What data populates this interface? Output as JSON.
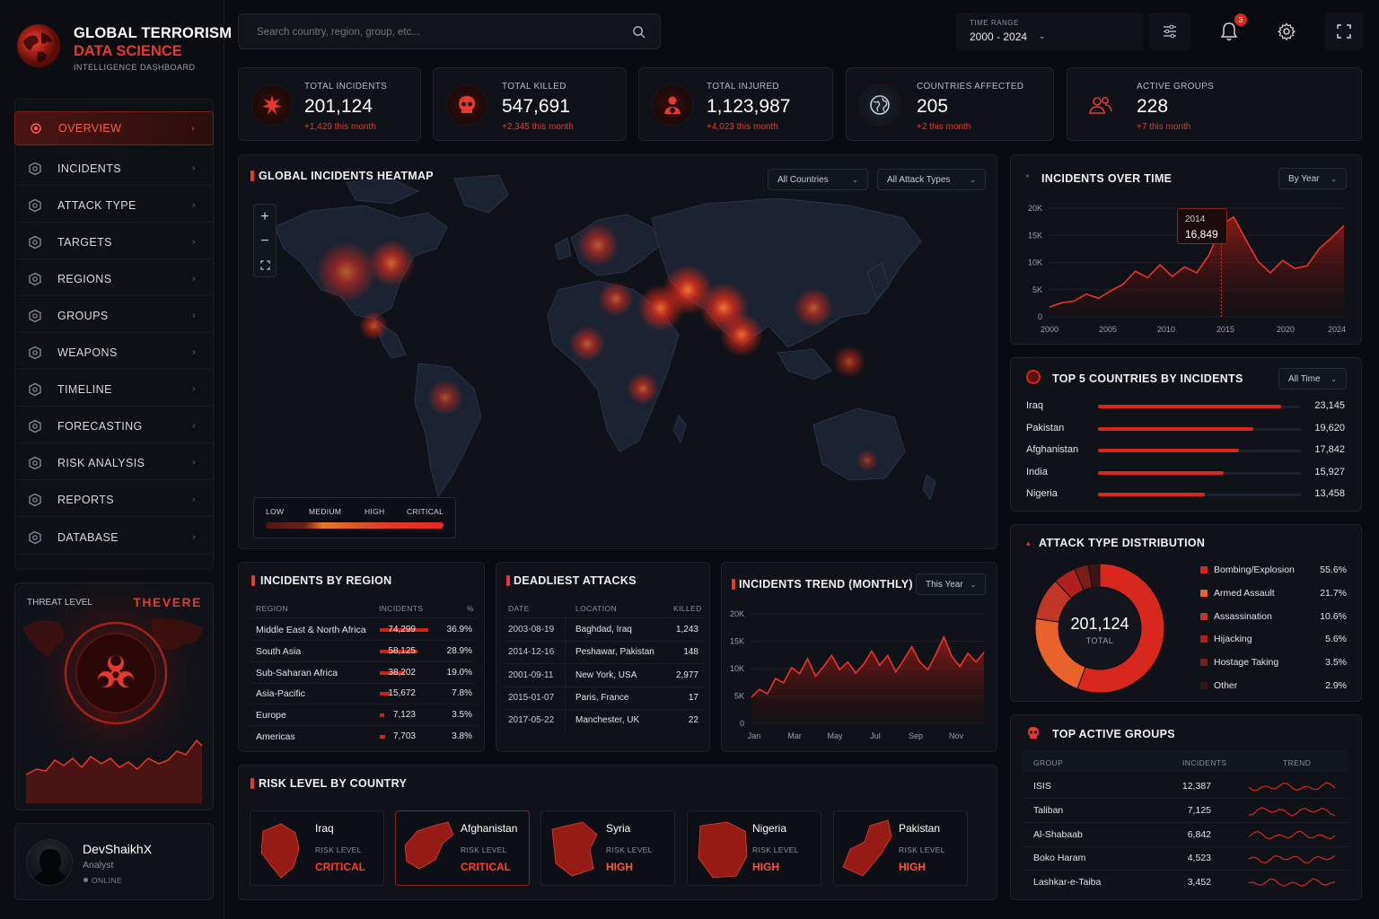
{
  "brand": {
    "title": "GLOBAL TERRORISM",
    "subtitle": "DATA SCIENCE",
    "tagline": "INTELLIGENCE DASHBOARD"
  },
  "nav": [
    {
      "label": "OVERVIEW",
      "icon": "overview-icon",
      "active": true
    },
    {
      "label": "INCIDENTS",
      "icon": "incidents-icon"
    },
    {
      "label": "ATTACK TYPE",
      "icon": "attack-type-icon"
    },
    {
      "label": "TARGETS",
      "icon": "target-icon"
    },
    {
      "label": "REGIONS",
      "icon": "globe-icon"
    },
    {
      "label": "GROUPS",
      "icon": "groups-icon"
    },
    {
      "label": "WEAPONS",
      "icon": "weapons-icon"
    },
    {
      "label": "TIMELINE",
      "icon": "calendar-icon"
    },
    {
      "label": "FORECASTING",
      "icon": "forecast-icon"
    },
    {
      "label": "RISK ANALYSIS",
      "icon": "warning-icon"
    },
    {
      "label": "REPORTS",
      "icon": "report-icon"
    },
    {
      "label": "DATABASE",
      "icon": "database-icon"
    }
  ],
  "threat": {
    "label": "THREAT LEVEL",
    "value": "THEVERE"
  },
  "user": {
    "name": "DevShaikhX",
    "role": "Analyst",
    "status": "ONLINE"
  },
  "search": {
    "placeholder": "Search country, region, group, etc..."
  },
  "time_range": {
    "label": "TIME RANGE",
    "value": "2000 - 2024"
  },
  "notifications": {
    "count": "3"
  },
  "stats": [
    {
      "label": "TOTAL INCIDENTS",
      "value": "201,124",
      "delta": "+1,429 this month",
      "icon": "explosion-icon"
    },
    {
      "label": "TOTAL KILLED",
      "value": "547,691",
      "delta": "+2,345 this month",
      "icon": "skull-icon"
    },
    {
      "label": "TOTAL INJURED",
      "value": "1,123,987",
      "delta": "+4,023 this month",
      "icon": "injured-person-icon"
    },
    {
      "label": "COUNTRIES AFFECTED",
      "value": "205",
      "delta": "+2 this month",
      "icon": "globe-icon"
    },
    {
      "label": "ACTIVE GROUPS",
      "value": "228",
      "delta": "+7 this month",
      "icon": "groups-icon"
    }
  ],
  "heatmap": {
    "title": "GLOBAL INCIDENTS HEATMAP",
    "filter_country": "All Countries",
    "filter_attack": "All Attack Types",
    "legend": [
      "LOW",
      "MEDIUM",
      "HIGH",
      "CRITICAL"
    ]
  },
  "over_time": {
    "title": "INCIDENTS OVER TIME",
    "filter": "By Year",
    "tooltip_year": "2014",
    "tooltip_value": "16,849"
  },
  "top_countries": {
    "title": "TOP 5 COUNTRIES BY INCIDENTS",
    "filter": "All Time",
    "max": 23145,
    "rows": [
      {
        "name": "Iraq",
        "value": 23145,
        "display": "23,145"
      },
      {
        "name": "Pakistan",
        "value": 19620,
        "display": "19,620"
      },
      {
        "name": "Afghanistan",
        "value": 17842,
        "display": "17,842"
      },
      {
        "name": "India",
        "value": 15927,
        "display": "15,927"
      },
      {
        "name": "Nigeria",
        "value": 13458,
        "display": "13,458"
      }
    ]
  },
  "attack_dist": {
    "title": "ATTACK TYPE DISTRIBUTION",
    "total": "201,124",
    "total_label": "TOTAL"
  },
  "by_region": {
    "title": "INCIDENTS BY REGION",
    "headers": [
      "REGION",
      "INCIDENTS",
      "%"
    ],
    "max": 74299,
    "rows": [
      {
        "region": "Middle East & North Africa",
        "incidents": 74299,
        "display": "74,299",
        "pct": "36.9%"
      },
      {
        "region": "South Asia",
        "incidents": 58125,
        "display": "58,125",
        "pct": "28.9%"
      },
      {
        "region": "Sub-Saharan Africa",
        "incidents": 38202,
        "display": "38,202",
        "pct": "19.0%"
      },
      {
        "region": "Asia-Pacific",
        "incidents": 15672,
        "display": "15,672",
        "pct": "7.8%"
      },
      {
        "region": "Europe",
        "incidents": 7123,
        "display": "7,123",
        "pct": "3.5%"
      },
      {
        "region": "Americas",
        "incidents": 7703,
        "display": "7,703",
        "pct": "3.8%"
      }
    ]
  },
  "deadliest": {
    "title": "DEADLIEST ATTACKS",
    "headers": [
      "DATE",
      "LOCATION",
      "KILLED"
    ],
    "rows": [
      {
        "date": "2003-08-19",
        "location": "Baghdad, Iraq",
        "killed": "1,243"
      },
      {
        "date": "2014-12-16",
        "location": "Peshawar, Pakistan",
        "killed": "148"
      },
      {
        "date": "2001-09-11",
        "location": "New York, USA",
        "killed": "2,977"
      },
      {
        "date": "2015-01-07",
        "location": "Paris, France",
        "killed": "17"
      },
      {
        "date": "2017-05-22",
        "location": "Manchester, UK",
        "killed": "22"
      }
    ]
  },
  "trend": {
    "title": "INCIDENTS TREND (MONTHLY)",
    "filter": "This Year"
  },
  "risk": {
    "title": "RISK LEVEL BY COUNTRY",
    "label": "RISK LEVEL",
    "cards": [
      {
        "country": "Iraq",
        "level": "CRITICAL",
        "color": "#ff3b2e"
      },
      {
        "country": "Afghanistan",
        "level": "CRITICAL",
        "color": "#ff3b2e"
      },
      {
        "country": "Syria",
        "level": "HIGH",
        "color": "#ff5533"
      },
      {
        "country": "Nigeria",
        "level": "HIGH",
        "color": "#ff5533"
      },
      {
        "country": "Pakistan",
        "level": "HIGH",
        "color": "#ff5533"
      }
    ]
  },
  "groups": {
    "title": "TOP ACTIVE GROUPS",
    "headers": [
      "GROUP",
      "INCIDENTS",
      "TREND"
    ],
    "rows": [
      {
        "name": "ISIS",
        "incidents": "12,387"
      },
      {
        "name": "Taliban",
        "incidents": "7,125"
      },
      {
        "name": "Al-Shabaab",
        "incidents": "6,842"
      },
      {
        "name": "Boko Haram",
        "incidents": "4,523"
      },
      {
        "name": "Lashkar-e-Taiba",
        "incidents": "3,452"
      }
    ]
  },
  "chart_data": [
    {
      "type": "area",
      "title": "INCIDENTS OVER TIME",
      "x": [
        2000,
        2001,
        2002,
        2003,
        2004,
        2005,
        2006,
        2007,
        2008,
        2009,
        2010,
        2011,
        2012,
        2013,
        2014,
        2015,
        2016,
        2017,
        2018,
        2019,
        2020,
        2021,
        2022,
        2023,
        2024
      ],
      "values": [
        1800,
        2600,
        2900,
        4200,
        3400,
        4800,
        6000,
        8400,
        7200,
        9600,
        7400,
        9200,
        8100,
        11400,
        16849,
        18400,
        14200,
        10200,
        8100,
        10400,
        8900,
        9400,
        12600,
        14600,
        16800
      ],
      "x_ticks": [
        "2000",
        "2005",
        "2010",
        "2015",
        "2020",
        "2024"
      ],
      "y_ticks": [
        "0",
        "5K",
        "10K",
        "15K",
        "20K"
      ],
      "ylim": [
        0,
        20000
      ]
    },
    {
      "type": "pie",
      "title": "ATTACK TYPE DISTRIBUTION",
      "labels": [
        "Bombing/Explosion",
        "Armed Assault",
        "Assassination",
        "Hijacking",
        "Hostage Taking",
        "Other"
      ],
      "values": [
        55.6,
        21.7,
        10.6,
        5.6,
        3.5,
        2.9
      ],
      "display": [
        "55.6%",
        "21.7%",
        "10.6%",
        "5.6%",
        "3.5%",
        "2.9%"
      ],
      "colors": [
        "#d8281e",
        "#e8622a",
        "#c2362a",
        "#b02020",
        "#7a1e1a",
        "#3a1614"
      ]
    },
    {
      "type": "area",
      "title": "INCIDENTS TREND (MONTHLY)",
      "x_ticks": [
        "Jan",
        "Mar",
        "May",
        "Jul",
        "Sep",
        "Nov"
      ],
      "y_ticks": [
        "0",
        "5K",
        "10K",
        "15K",
        "20K"
      ],
      "ylim": [
        0,
        20000
      ],
      "values": [
        4800,
        6200,
        5400,
        8200,
        7400,
        10200,
        9100,
        11800,
        8600,
        10400,
        12400,
        9800,
        11200,
        9200,
        10800,
        13200,
        10600,
        12400,
        9400,
        11600,
        14000,
        11200,
        9800,
        12600,
        15800,
        12200,
        10400,
        12800,
        11200,
        13000
      ]
    }
  ]
}
